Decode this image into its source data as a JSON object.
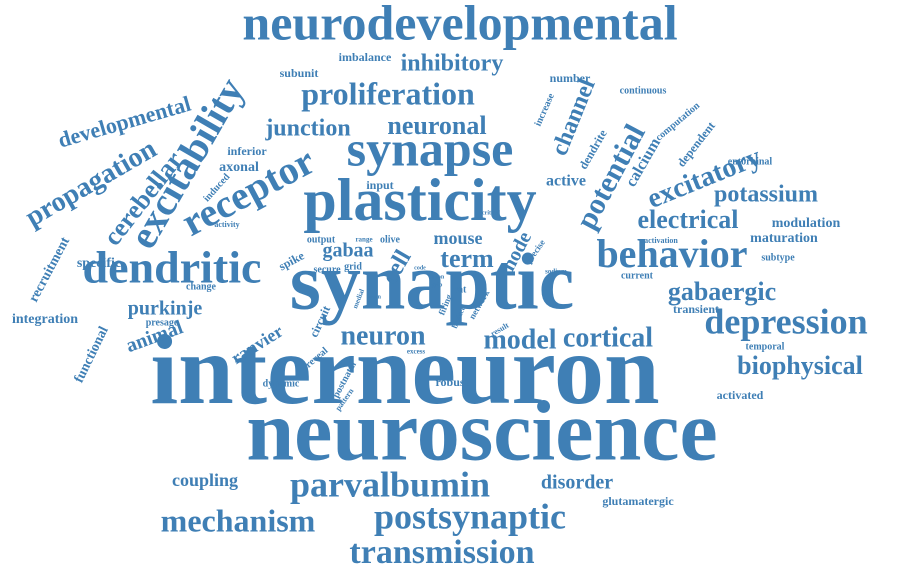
{
  "color": "#3f7fb5",
  "words": [
    "neurodevelopmental",
    "interneuron",
    "neuroscience",
    "synaptic",
    "plasticity",
    "synapse",
    "dendritic",
    "excitability",
    "receptor",
    "behavior",
    "depression",
    "parvalbumin",
    "postsynaptic",
    "transmission",
    "mechanism",
    "proliferation",
    "inhibitory",
    "neuronal",
    "junction",
    "excitatory",
    "potential",
    "channel",
    "gabaergic",
    "electrical",
    "potassium",
    "biophysical",
    "cortical",
    "model",
    "neuron",
    "term",
    "mouse",
    "cell",
    "gabaa",
    "propagation",
    "cerebellar",
    "developmental",
    "purkinje",
    "animal",
    "ranvier",
    "node",
    "coupling",
    "disorder",
    "glutamatergic",
    "integration",
    "recruitment",
    "functional",
    "specific",
    "axonal",
    "inferior",
    "input",
    "active",
    "calcium",
    "dendrite",
    "computation",
    "dependent",
    "entorhinal",
    "continuous",
    "number",
    "increase",
    "subunit",
    "imbalance",
    "modulation",
    "maturation",
    "subtype",
    "activation",
    "transient",
    "temporal",
    "current",
    "activated",
    "robust",
    "dynamic",
    "postnatal",
    "pattern",
    "circuit",
    "reveal",
    "spike",
    "secure",
    "grid",
    "output",
    "range",
    "olive",
    "induced",
    "activity",
    "change",
    "presage",
    "medial",
    "brain",
    "code",
    "rat",
    "firing",
    "basket",
    "network",
    "result",
    "excess",
    "critical",
    "precise",
    "sodium",
    "axon",
    "grip"
  ]
}
